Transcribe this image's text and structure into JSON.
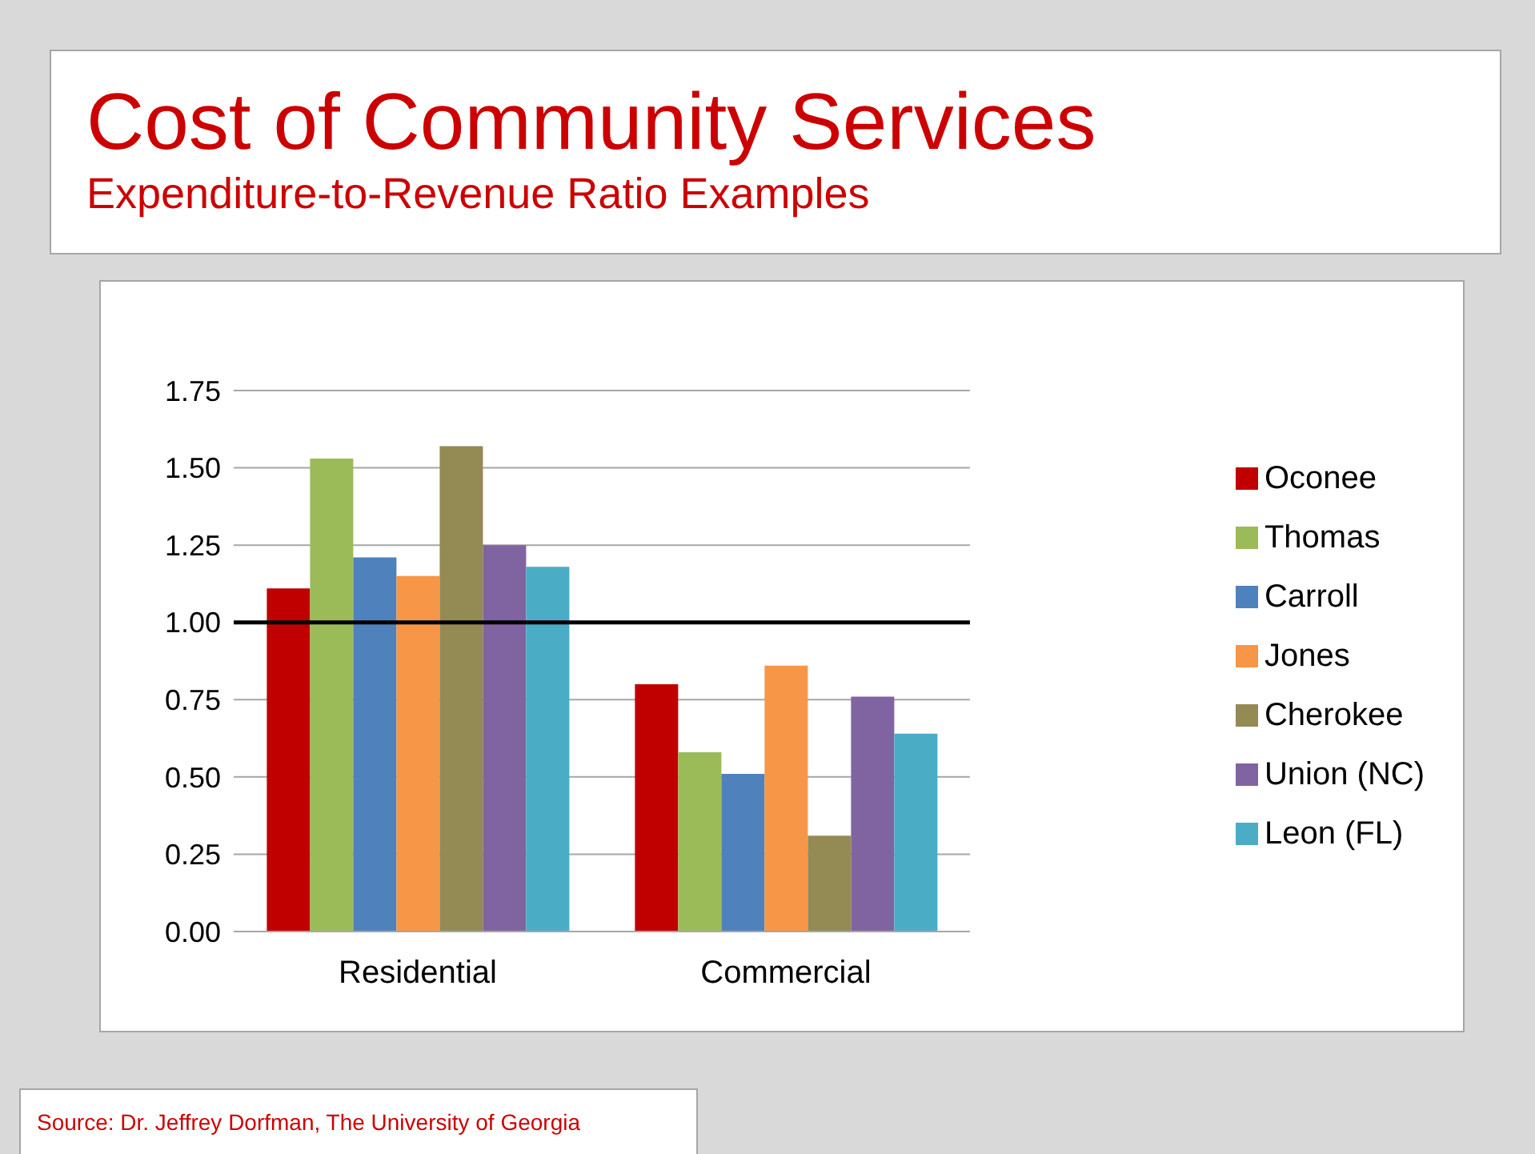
{
  "chart_data": {
    "type": "bar",
    "title": "Cost of Community Services",
    "subtitle": "Expenditure-to-Revenue Ratio Examples",
    "categories": [
      "Residential",
      "Commercial"
    ],
    "series": [
      {
        "name": "Oconee",
        "color": "#c00000",
        "values": [
          1.11,
          0.8
        ]
      },
      {
        "name": "Thomas",
        "color": "#9bbb59",
        "values": [
          1.53,
          0.58
        ]
      },
      {
        "name": "Carroll",
        "color": "#4f81bd",
        "values": [
          1.21,
          0.51
        ]
      },
      {
        "name": "Jones",
        "color": "#f79646",
        "values": [
          1.15,
          0.86
        ]
      },
      {
        "name": "Cherokee",
        "color": "#948a54",
        "values": [
          1.57,
          0.31
        ]
      },
      {
        "name": "Union (NC)",
        "color": "#8064a2",
        "values": [
          1.25,
          0.76
        ]
      },
      {
        "name": "Leon (FL)",
        "color": "#4bacc6",
        "values": [
          1.18,
          0.64
        ]
      }
    ],
    "ylim": [
      0,
      1.75
    ],
    "yticks": [
      {
        "value": 0,
        "label": "0.00"
      },
      {
        "value": 0.25,
        "label": "0.25"
      },
      {
        "value": 0.5,
        "label": "0.50"
      },
      {
        "value": 0.75,
        "label": "0.75"
      },
      {
        "value": 1,
        "label": "1.00"
      },
      {
        "value": 1.25,
        "label": "1.25"
      },
      {
        "value": 1.5,
        "label": "1.50"
      },
      {
        "value": 1.75,
        "label": "1.75"
      }
    ],
    "grid": "y",
    "legend": "right",
    "ref_lines": [
      {
        "axis": "y",
        "value": 1,
        "color": "#000000"
      }
    ],
    "annotations": [
      "Source: Dr. Jeffrey Dorfman, The University of Georgia"
    ]
  }
}
